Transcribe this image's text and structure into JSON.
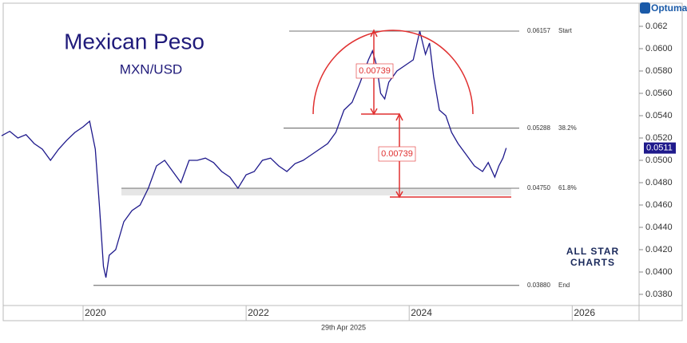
{
  "chart_data": {
    "type": "line",
    "title": "Mexican Peso",
    "subtitle": "MXN/USD",
    "date": "29th Apr 2025",
    "brand": "Optuma",
    "watermark": [
      "ALL STAR",
      "CHARTS"
    ],
    "color": "#1f1a8c",
    "x": [
      2019.0,
      2019.1,
      2019.2,
      2019.3,
      2019.4,
      2019.5,
      2019.6,
      2019.7,
      2019.8,
      2019.9,
      2020.0,
      2020.08,
      2020.15,
      2020.2,
      2020.25,
      2020.28,
      2020.32,
      2020.4,
      2020.5,
      2020.6,
      2020.7,
      2020.8,
      2020.9,
      2021.0,
      2021.1,
      2021.2,
      2021.3,
      2021.4,
      2021.5,
      2021.6,
      2021.7,
      2021.8,
      2021.9,
      2022.0,
      2022.1,
      2022.2,
      2022.3,
      2022.4,
      2022.5,
      2022.6,
      2022.7,
      2022.8,
      2022.9,
      2023.0,
      2023.1,
      2023.2,
      2023.3,
      2023.4,
      2023.5,
      2023.55,
      2023.6,
      2023.65,
      2023.7,
      2023.75,
      2023.85,
      2023.95,
      2024.05,
      2024.13,
      2024.2,
      2024.25,
      2024.3,
      2024.37,
      2024.45,
      2024.52,
      2024.6,
      2024.7,
      2024.8,
      2024.9,
      2024.97,
      2025.05,
      2025.1,
      2025.15,
      2025.19
    ],
    "values": [
      0.0522,
      0.0526,
      0.052,
      0.0523,
      0.0515,
      0.051,
      0.05,
      0.051,
      0.0518,
      0.0525,
      0.053,
      0.0535,
      0.051,
      0.046,
      0.0405,
      0.0395,
      0.0415,
      0.042,
      0.0445,
      0.0455,
      0.046,
      0.0475,
      0.0495,
      0.05,
      0.049,
      0.048,
      0.05,
      0.05,
      0.0502,
      0.0498,
      0.049,
      0.0485,
      0.0475,
      0.0487,
      0.049,
      0.05,
      0.0502,
      0.0495,
      0.049,
      0.0497,
      0.05,
      0.0505,
      0.051,
      0.0515,
      0.0525,
      0.0545,
      0.0552,
      0.057,
      0.059,
      0.0598,
      0.0585,
      0.056,
      0.0555,
      0.057,
      0.058,
      0.0585,
      0.059,
      0.06157,
      0.0595,
      0.0605,
      0.0575,
      0.0545,
      0.054,
      0.0525,
      0.0515,
      0.0505,
      0.0495,
      0.049,
      0.0498,
      0.0485,
      0.0495,
      0.0502,
      0.0511
    ],
    "xlim": [
      2019.02,
      2026.82
    ],
    "xticks": [
      2020,
      2022,
      2024,
      2026
    ],
    "ylim": [
      0.037,
      0.064
    ],
    "yticks": [
      {
        "value": 0.038,
        "label": "0.0380"
      },
      {
        "value": 0.04,
        "label": "0.0400"
      },
      {
        "value": 0.042,
        "label": "0.0420"
      },
      {
        "value": 0.044,
        "label": "0.0440"
      },
      {
        "value": 0.046,
        "label": "0.0460"
      },
      {
        "value": 0.048,
        "label": "0.0480"
      },
      {
        "value": 0.05,
        "label": "0.0500"
      },
      {
        "value": 0.052,
        "label": "0.0520"
      },
      {
        "value": 0.054,
        "label": "0.0540"
      },
      {
        "value": 0.056,
        "label": "0.0560"
      },
      {
        "value": 0.058,
        "label": "0.0580"
      },
      {
        "value": 0.06,
        "label": "0.0600"
      },
      {
        "value": 0.062,
        "label": "0.062"
      }
    ],
    "last_price": {
      "value": 0.0511,
      "label": "0.0511"
    },
    "levels": [
      {
        "value": 0.06157,
        "label": "0.06157",
        "name": "Start"
      },
      {
        "value": 0.05288,
        "label": "0.05288",
        "name": "38.2%"
      },
      {
        "value": 0.0475,
        "label": "0.04750",
        "name": "61.8%"
      },
      {
        "value": 0.0388,
        "label": "0.03880",
        "name": "End"
      }
    ],
    "move": {
      "value": 0.00739,
      "label": "0.00739"
    }
  }
}
